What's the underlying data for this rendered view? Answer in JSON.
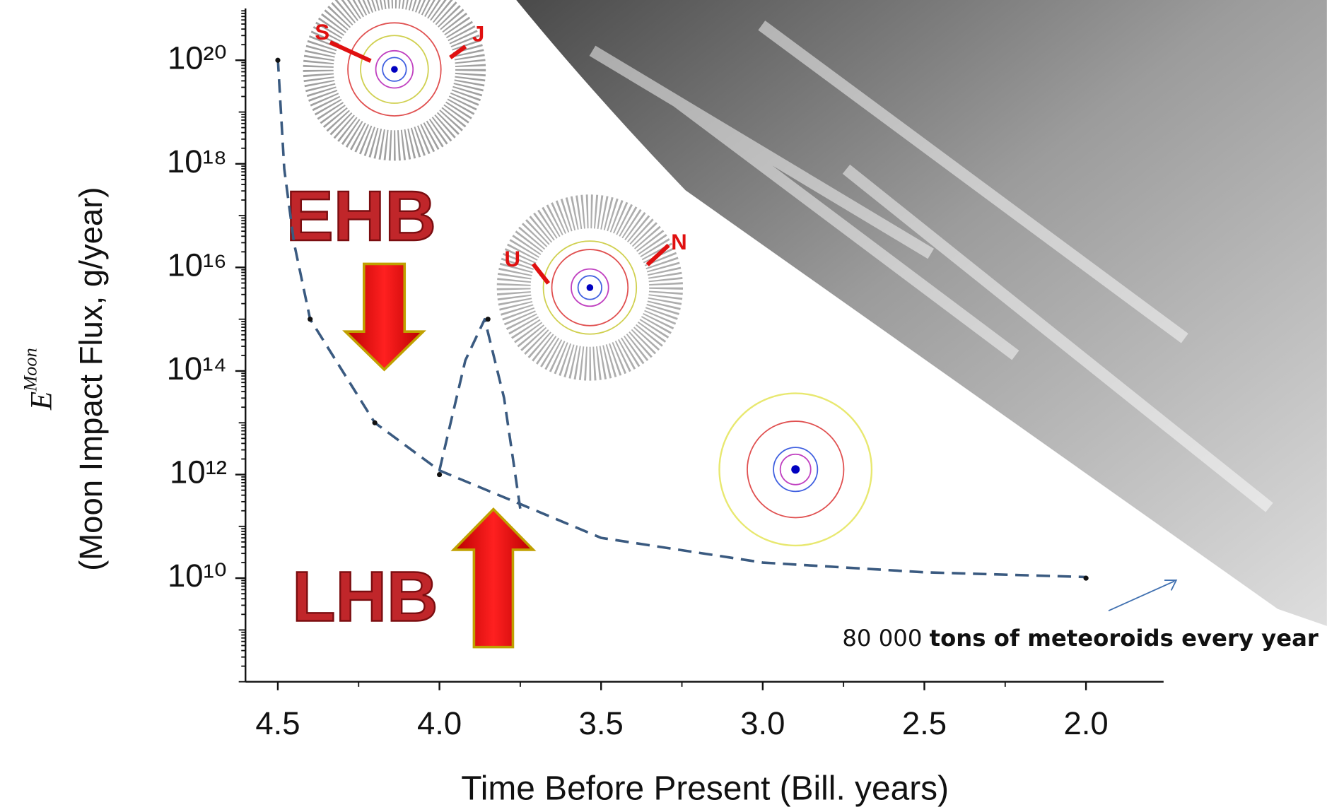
{
  "chart_data": {
    "type": "line",
    "x_label": "Time Before Present (Bill. years)",
    "y_label": {
      "symbol": "E",
      "superscript": "Moon",
      "text": "(Moon Impact Flux, g/year)"
    },
    "log_y": true,
    "xlim": [
      4.6,
      1.76
    ],
    "xticks": [
      4.5,
      {
        "value": 4,
        "label": "4.0"
      },
      3.5,
      {
        "value": 3,
        "label": "3.0"
      },
      2.5,
      {
        "value": 2,
        "label": "2.0"
      }
    ],
    "ylim": [
      100000000.0,
      1e+21
    ],
    "yticks": [
      {
        "value": 10000000000.0,
        "label": "10¹⁰"
      },
      {
        "value": 1000000000000.0,
        "label": "10¹²"
      },
      {
        "value": 100000000000000.0,
        "label": "10¹⁴"
      },
      {
        "value": 1e+16,
        "label": "10¹⁶"
      },
      {
        "value": 1e+18,
        "label": "10¹⁸"
      },
      {
        "value": 1e+20,
        "label": "10²⁰"
      }
    ],
    "series": [
      {
        "color": "#3a5a80",
        "x": [
          4.5,
          4.48,
          4.45,
          4.4,
          4.2,
          4.0,
          3.75,
          3.5,
          3.0,
          2.5,
          2.0
        ],
        "values": [
          1.1e+20,
          8e+17,
          3e+16,
          1000000000000000.0,
          10000000000000.0,
          1200000000000.0,
          270000000000.0,
          60000000000.0,
          20000000000.0,
          13000000000.0,
          10500000000.0
        ]
      },
      {
        "color": "#3a5a80",
        "x": [
          4.0,
          3.92,
          3.86,
          3.8,
          3.75
        ],
        "values": [
          1200000000000.0,
          160000000000000.0,
          1000000000000000.0,
          30000000000000.0,
          220000000000.0
        ]
      }
    ],
    "points": {
      "color": "#111111",
      "x": [
        4.5,
        4.4,
        4.2,
        4.0,
        3.85,
        2.0
      ],
      "values": [
        1e+20,
        1000000000000000.0,
        10000000000000.0,
        1000000000000.0,
        1000000000000000.0,
        10000000000.0
      ]
    },
    "annotations": {
      "ehb": "EHB",
      "lhb": "LHB",
      "s": "S",
      "j": "J",
      "u": "U",
      "n": "N",
      "amount": "80 000",
      "amount_text": "tons of meteoroids every year"
    }
  }
}
